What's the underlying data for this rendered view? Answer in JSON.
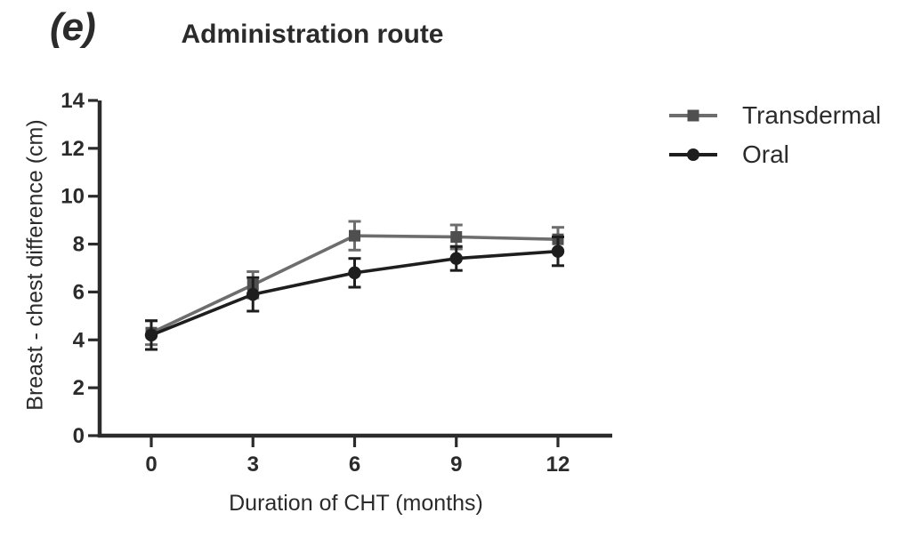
{
  "figure": {
    "panel_label": "(e)",
    "background": "#ffffff",
    "text_color": "#2b2b2b"
  },
  "chart_data": {
    "type": "line",
    "title": "Administration route",
    "xlabel": "Duration of CHT (months)",
    "ylabel": "Breast - chest difference (cm)",
    "x": [
      0,
      3,
      6,
      9,
      12
    ],
    "xticklabels": [
      "0",
      "3",
      "6",
      "9",
      "12"
    ],
    "yticks": [
      0,
      2,
      4,
      6,
      8,
      10,
      12,
      14
    ],
    "xlim": [
      -1.5,
      13.6
    ],
    "ylim": [
      0,
      14
    ],
    "grid": false,
    "legend_position": "right-top",
    "error_bars": true,
    "series": [
      {
        "name": "Transdermal",
        "marker": "square",
        "line_color": "#6d6d6d",
        "marker_color": "#4f4f4f",
        "values": [
          4.3,
          6.3,
          8.35,
          8.3,
          8.2
        ],
        "errors": [
          0.5,
          0.55,
          0.6,
          0.5,
          0.5
        ]
      },
      {
        "name": "Oral",
        "marker": "circle",
        "line_color": "#1e1e1e",
        "marker_color": "#1e1e1e",
        "values": [
          4.2,
          5.9,
          6.8,
          7.4,
          7.7
        ],
        "errors": [
          0.6,
          0.7,
          0.6,
          0.5,
          0.6
        ]
      }
    ],
    "axis_color": "#2b2b2b"
  }
}
